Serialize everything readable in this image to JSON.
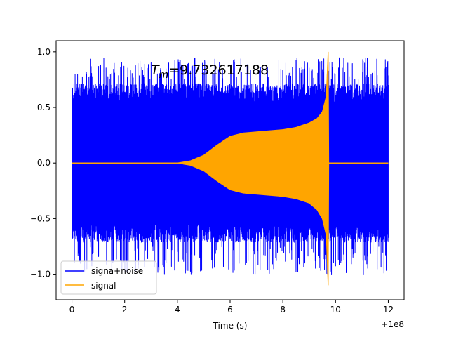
{
  "chart_data": {
    "type": "line",
    "title": "",
    "annotation": "T_m=9.732617188",
    "annotation_parts": {
      "symbol": "T",
      "subscript": "m",
      "value": "=9.732617188"
    },
    "xlabel": "Time (s)",
    "ylabel": "",
    "x_offset_label": "+1e8",
    "xlim": [
      -0.6,
      12.6
    ],
    "ylim": [
      -1.23,
      1.1
    ],
    "x_ticks": [
      0,
      2,
      4,
      6,
      8,
      10,
      12
    ],
    "x_tick_labels": [
      "0",
      "2",
      "4",
      "6",
      "8",
      "10",
      "12"
    ],
    "y_ticks": [
      -1.0,
      -0.5,
      0.0,
      0.5,
      1.0
    ],
    "y_tick_labels": [
      "−1.0",
      "−0.5",
      "0.0",
      "0.5",
      "1.0"
    ],
    "grid": false,
    "legend_placement": "lower-left",
    "series": [
      {
        "name": "signa+noise",
        "color": "#0000ff",
        "kind": "noise-band",
        "x": [
          0,
          12
        ],
        "typical_amplitude": 0.62,
        "peak_amplitude": 0.95
      },
      {
        "name": "signal",
        "color": "#ffa500",
        "kind": "chirp-envelope",
        "envelope_x": [
          0,
          4.0,
          4.5,
          5.0,
          5.5,
          6.0,
          6.5,
          7.0,
          7.5,
          8.0,
          8.5,
          9.0,
          9.3,
          9.5,
          9.65,
          9.72,
          9.74,
          12
        ],
        "envelope_upper": [
          0,
          0,
          0.02,
          0.07,
          0.16,
          0.24,
          0.27,
          0.28,
          0.29,
          0.3,
          0.32,
          0.36,
          0.4,
          0.46,
          0.6,
          1.0,
          0.0,
          0.0
        ],
        "envelope_lower": [
          0,
          0,
          -0.02,
          -0.07,
          -0.16,
          -0.24,
          -0.27,
          -0.28,
          -0.29,
          -0.3,
          -0.32,
          -0.36,
          -0.42,
          -0.5,
          -0.65,
          -1.1,
          0.0,
          0.0
        ]
      }
    ]
  }
}
